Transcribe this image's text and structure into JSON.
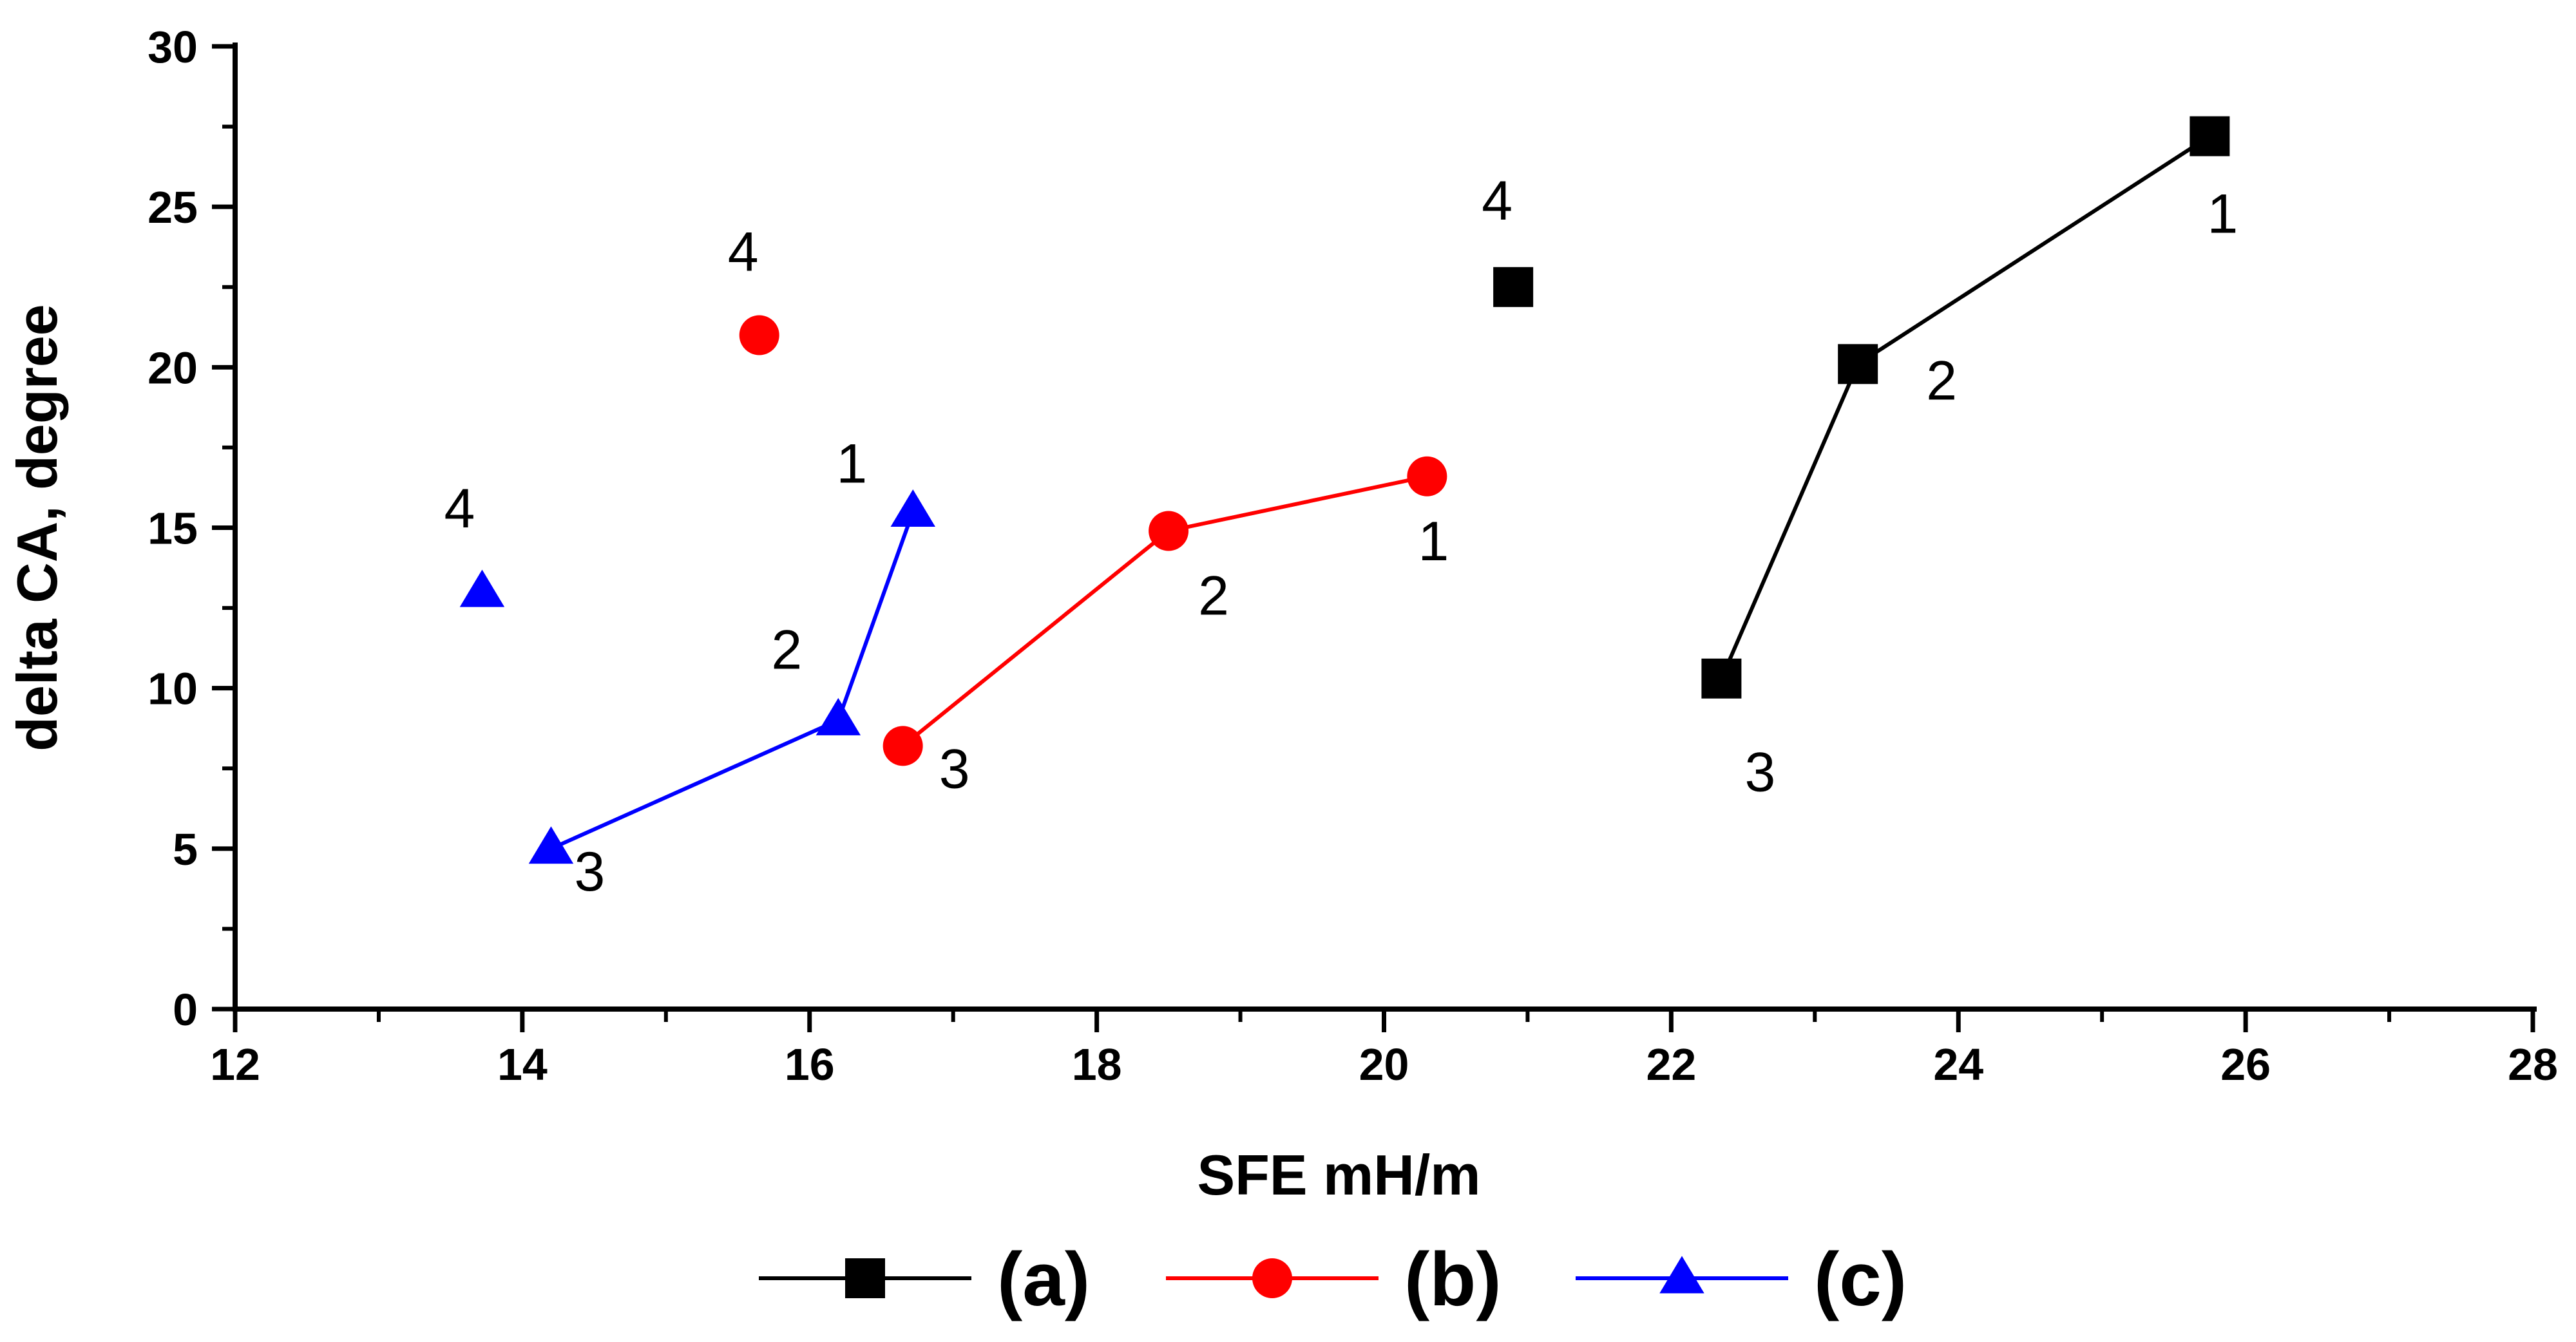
{
  "chart_data": {
    "type": "scatter",
    "title": "",
    "xlabel": "SFE mH/m",
    "ylabel": "delta CA, degree",
    "xlim": [
      12,
      28
    ],
    "ylim": [
      0,
      30
    ],
    "xticks": [
      "12",
      "14",
      "16",
      "18",
      "20",
      "22",
      "24",
      "26",
      "28"
    ],
    "yticks": [
      "0",
      "5",
      "10",
      "15",
      "20",
      "25",
      "30"
    ],
    "grid": false,
    "legend_position": "bottom",
    "series": [
      {
        "name": "(a)",
        "color": "#000000",
        "marker": "square",
        "points": [
          {
            "x": 25.75,
            "y": 27.2,
            "label": "1"
          },
          {
            "x": 23.3,
            "y": 20.1,
            "label": "2"
          },
          {
            "x": 22.35,
            "y": 10.3,
            "label": "3"
          },
          {
            "x": 20.9,
            "y": 22.5,
            "label": "4"
          }
        ]
      },
      {
        "name": "(b)",
        "color": "#ff0000",
        "marker": "circle",
        "points": [
          {
            "x": 20.3,
            "y": 16.6,
            "label": "1"
          },
          {
            "x": 18.5,
            "y": 14.9,
            "label": "2"
          },
          {
            "x": 16.65,
            "y": 8.2,
            "label": "3"
          },
          {
            "x": 15.65,
            "y": 21.0,
            "label": "4"
          }
        ]
      },
      {
        "name": "(c)",
        "color": "#0000ff",
        "marker": "triangle",
        "points": [
          {
            "x": 16.72,
            "y": 15.5,
            "label": "1"
          },
          {
            "x": 16.2,
            "y": 9.0,
            "label": "2"
          },
          {
            "x": 14.2,
            "y": 5.0,
            "label": "3"
          },
          {
            "x": 13.72,
            "y": 13.0,
            "label": "4"
          }
        ]
      }
    ]
  }
}
